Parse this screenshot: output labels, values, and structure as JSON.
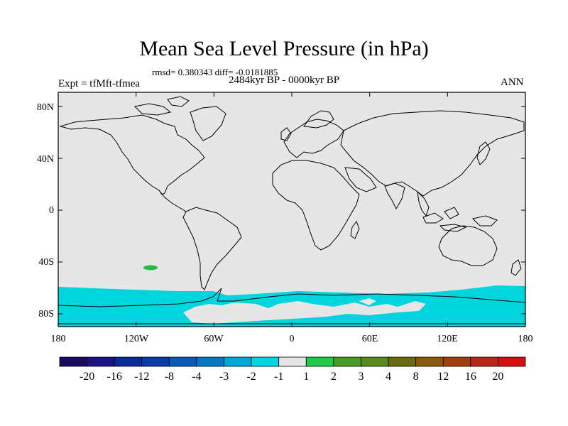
{
  "title": "Mean Sea Level Pressure (in hPa)",
  "stats": "rmsd= 0.380343 diff= -0.0181885",
  "experiment": "Expt = tfMft-tfmea",
  "period": "2484kyr BP - 0000kyr BP",
  "season": "ANN",
  "map": {
    "lat_ticks": [
      "80N",
      "40N",
      "0",
      "40S",
      "80S"
    ],
    "lon_ticks": [
      "180",
      "120W",
      "60W",
      "0",
      "60E",
      "120E",
      "180"
    ],
    "background_color": "#e6e6e6",
    "anomaly_color_neg": "#00d4dc",
    "anomaly_color_pos": "#22bb44"
  },
  "colorbar": {
    "labels": [
      "-20",
      "-16",
      "-12",
      "-8",
      "-4",
      "-3",
      "-2",
      "-1",
      "1",
      "2",
      "3",
      "4",
      "8",
      "12",
      "16",
      "20"
    ],
    "colors": [
      "#1a0a5e",
      "#1c1480",
      "#0a2a96",
      "#0a3ca6",
      "#0a58b4",
      "#0a78c0",
      "#00a8d2",
      "#00d6e2",
      "#e6e6e6",
      "#22c84a",
      "#4a9a2a",
      "#5a8a1e",
      "#6a6a10",
      "#8a5a10",
      "#a04010",
      "#b82818",
      "#d21010"
    ]
  }
}
